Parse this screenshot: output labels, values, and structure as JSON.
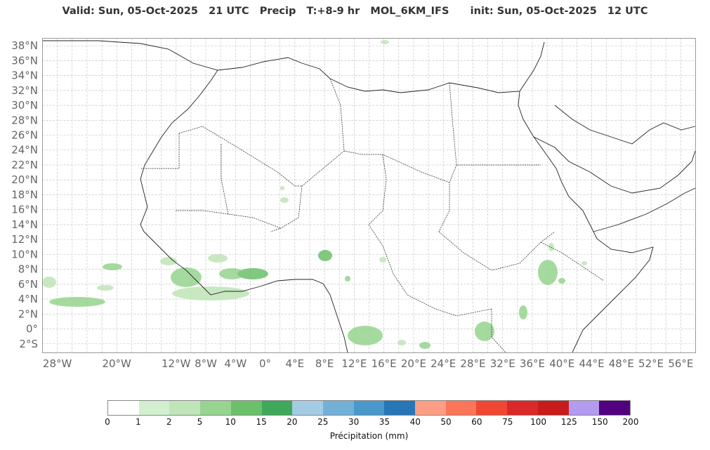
{
  "title": "Valid: Sun, 05-Oct-2025   21 UTC   Precip   T:+8-9 hr   MOL_6KM_IFS      init: Sun, 05-Oct-2025   12 UTC",
  "map": {
    "lat_labels": [
      "38°N",
      "36°N",
      "34°N",
      "32°N",
      "30°N",
      "28°N",
      "26°N",
      "24°N",
      "22°N",
      "20°N",
      "18°N",
      "16°N",
      "14°N",
      "12°N",
      "10°N",
      "8°N",
      "6°N",
      "4°N",
      "2°N",
      "0°",
      "2°S"
    ],
    "lon_labels": [
      "28°W",
      "20°W",
      "12°W",
      "8°W",
      "4°W",
      "0°",
      "4°E",
      "8°E",
      "12°E",
      "16°E",
      "20°E",
      "24°E",
      "28°E",
      "32°E",
      "36°E",
      "40°E",
      "44°E",
      "48°E",
      "52°E",
      "56°E"
    ],
    "extent": {
      "lon_min": -30,
      "lon_max": 58,
      "lat_min": -3.2,
      "lat_max": 39
    },
    "gridlines": true,
    "colors": {
      "coast": "#222222",
      "grid": "#bbbbbb",
      "border": "#222222"
    }
  },
  "colorbar": {
    "ticks": [
      "0",
      "1",
      "2",
      "5",
      "10",
      "15",
      "20",
      "25",
      "30",
      "35",
      "40",
      "50",
      "60",
      "75",
      "100",
      "125",
      "150",
      "200"
    ],
    "colors": [
      "#ffffff",
      "#d2efcf",
      "#bfe5b8",
      "#96d48f",
      "#6cc06a",
      "#3fa85a",
      "#a4cbe4",
      "#73b0d8",
      "#4a98cb",
      "#2776b8",
      "#fc9e86",
      "#fb7558",
      "#f04733",
      "#db2828",
      "#c81c1c",
      "#b39bf0",
      "#52007f"
    ],
    "label": "Précipitation (mm)"
  }
}
